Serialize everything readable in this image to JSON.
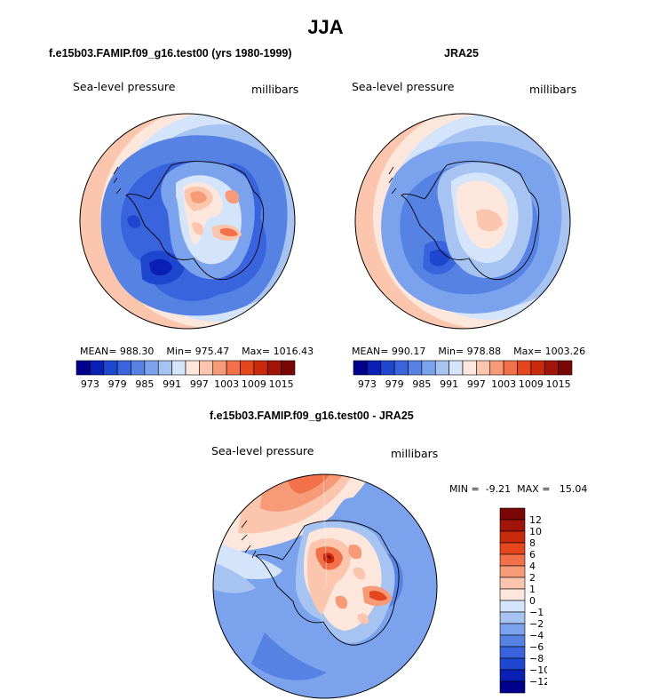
{
  "title": "JJA",
  "panels": {
    "model": {
      "title": "f.e15b03.FAMIP.f09_g16.test00 (yrs 1980-1999)",
      "field_label": "Sea-level pressure",
      "units_label": "millibars",
      "stats": {
        "mean_label": "MEAN=",
        "mean": "988.30",
        "min_label": "Min=",
        "min": "975.47",
        "max_label": "Max=",
        "max": "1016.43"
      }
    },
    "obs": {
      "title": "JRA25",
      "field_label": "Sea-level pressure",
      "units_label": "millibars",
      "stats": {
        "mean_label": "MEAN=",
        "mean": "990.17",
        "min_label": "Min=",
        "min": "978.88",
        "max_label": "Max=",
        "max": "1003.26"
      }
    },
    "diff": {
      "title": "f.e15b03.FAMIP.f09_g16.test00 - JRA25",
      "field_label": "Sea-level pressure",
      "units_label": "millibars",
      "stats": {
        "min_label": "MIN =",
        "min": "-9.21",
        "max_label": "MAX =",
        "max": "15.04"
      }
    }
  },
  "colorbars": {
    "abs": {
      "labels": [
        "973",
        "979",
        "985",
        "991",
        "997",
        "1003",
        "1009",
        "1015"
      ],
      "colors": [
        "#00008c",
        "#0a1fb3",
        "#1e46cf",
        "#3a64dd",
        "#5683e3",
        "#7ba2ec",
        "#a6c3f2",
        "#d4e4fa",
        "#fde6dc",
        "#fbc6ad",
        "#f79a78",
        "#f3714a",
        "#e5461e",
        "#c92a0c",
        "#a0140a",
        "#7a0505"
      ]
    },
    "diff": {
      "labels": [
        "12",
        "10",
        "8",
        "6",
        "4",
        "2",
        "1",
        "0",
        "−1",
        "−2",
        "−4",
        "−6",
        "−8",
        "−10",
        "−12"
      ],
      "colors": [
        "#7a0505",
        "#a0140a",
        "#c92a0c",
        "#e5461e",
        "#f3714a",
        "#f79a78",
        "#fbc6ad",
        "#fde6dc",
        "#d4e4fa",
        "#a6c3f2",
        "#7ba2ec",
        "#5683e3",
        "#3a64dd",
        "#1e46cf",
        "#0a1fb3",
        "#00008c"
      ]
    }
  }
}
